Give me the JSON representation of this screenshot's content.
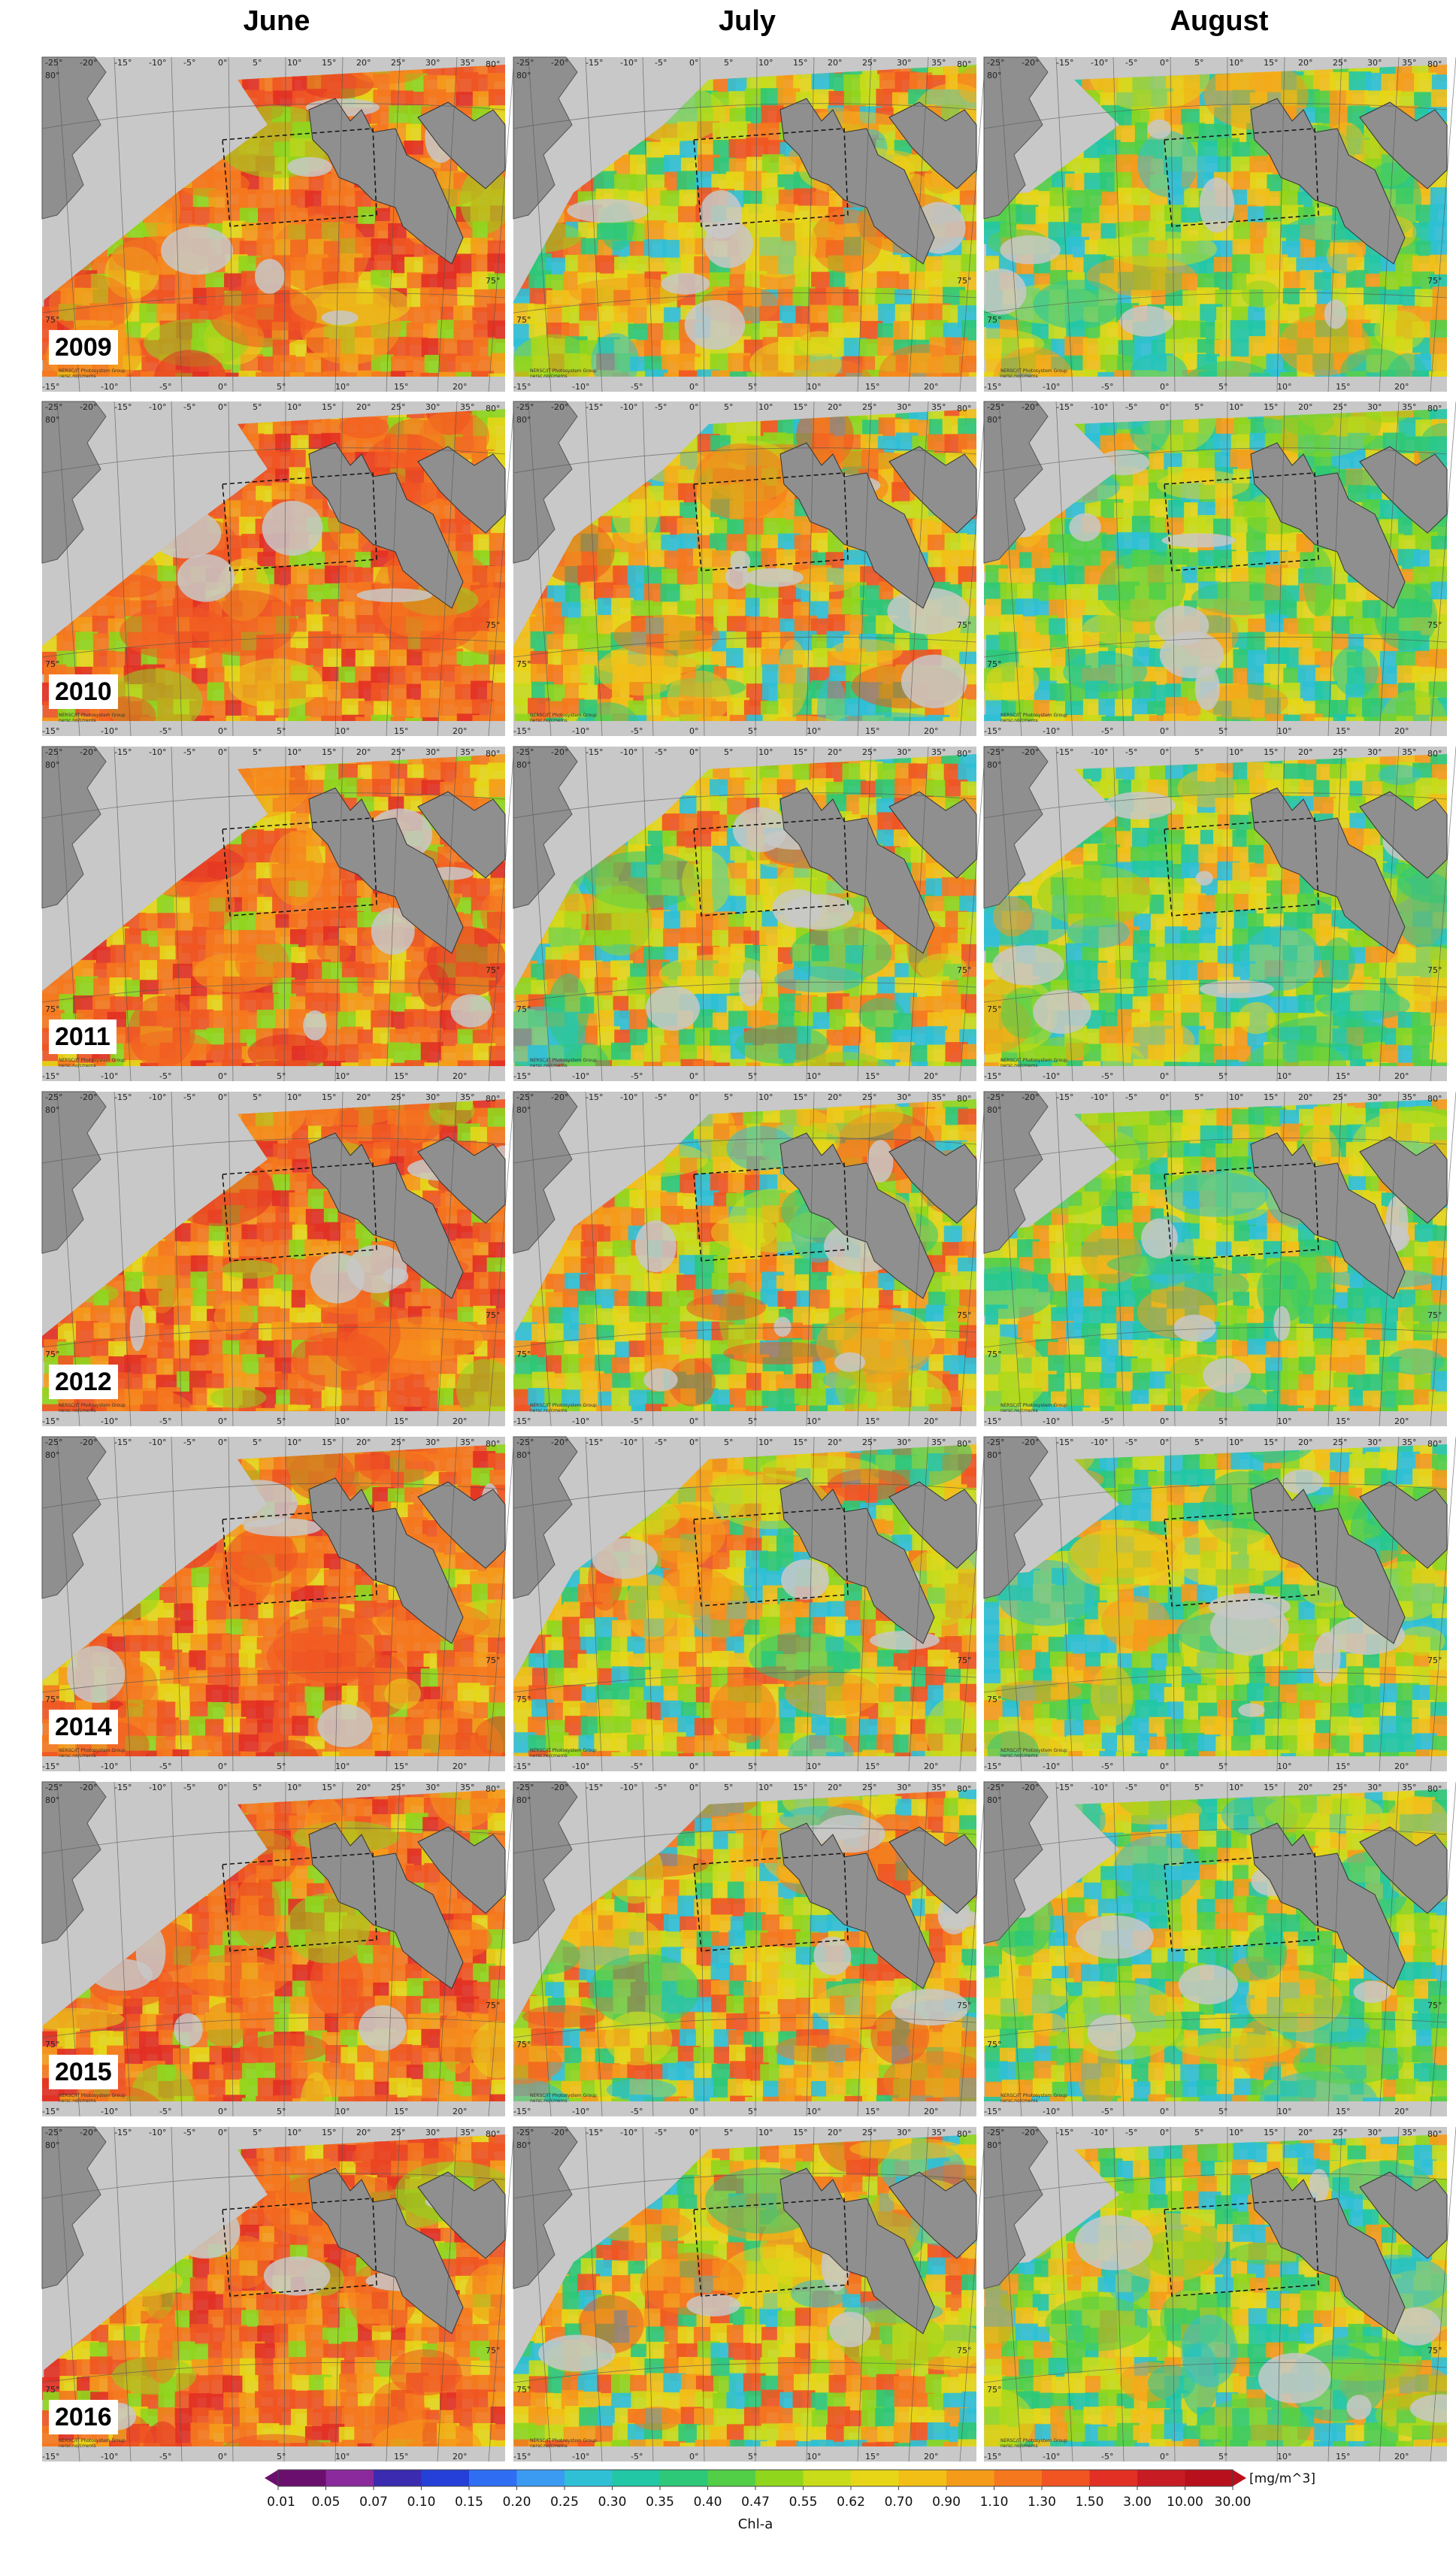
{
  "columns": [
    "June",
    "July",
    "August"
  ],
  "years": [
    "2009",
    "2010",
    "2011",
    "2012",
    "2014",
    "2015",
    "2016"
  ],
  "map_axes": {
    "top_lon_ticks": [
      "-25°",
      "-20°",
      "-15°",
      "-10°",
      "-5°",
      "0°",
      "5°",
      "10°",
      "15°",
      "20°",
      "25°",
      "30°",
      "35°"
    ],
    "bottom_lon_ticks": [
      "-15°",
      "-10°",
      "-5°",
      "0°",
      "5°",
      "10°",
      "15°",
      "20°"
    ],
    "lat_ticks_left": [
      "80°",
      "75°"
    ],
    "lat_ticks_right": [
      "80°",
      "75°"
    ]
  },
  "panel_credit": [
    "NERSC/IT Photosystem Group",
    "nersc.no/cmems"
  ],
  "colorbar": {
    "variable": "Chl-a",
    "unit": "[mg/m^3]",
    "ticks": [
      "0.01",
      "0.05",
      "0.07",
      "0.10",
      "0.15",
      "0.20",
      "0.25",
      "0.30",
      "0.35",
      "0.40",
      "0.47",
      "0.55",
      "0.62",
      "0.70",
      "0.90",
      "1.10",
      "1.30",
      "1.50",
      "3.00",
      "10.00",
      "30.00"
    ],
    "colors": [
      "#6b0f6e",
      "#8a2a9c",
      "#3a2bb0",
      "#2440d8",
      "#2f6ef2",
      "#3b9bf2",
      "#2fc0d6",
      "#22c7a6",
      "#2dc878",
      "#52cf47",
      "#8fd61d",
      "#c8dc19",
      "#e6d617",
      "#f2bf17",
      "#f59b1a",
      "#f5781e",
      "#f05522",
      "#e23024",
      "#c81c24",
      "#b8101c"
    ]
  },
  "palette": {
    "land": "#8f8f8f",
    "no_data": "#c8c8c8"
  }
}
